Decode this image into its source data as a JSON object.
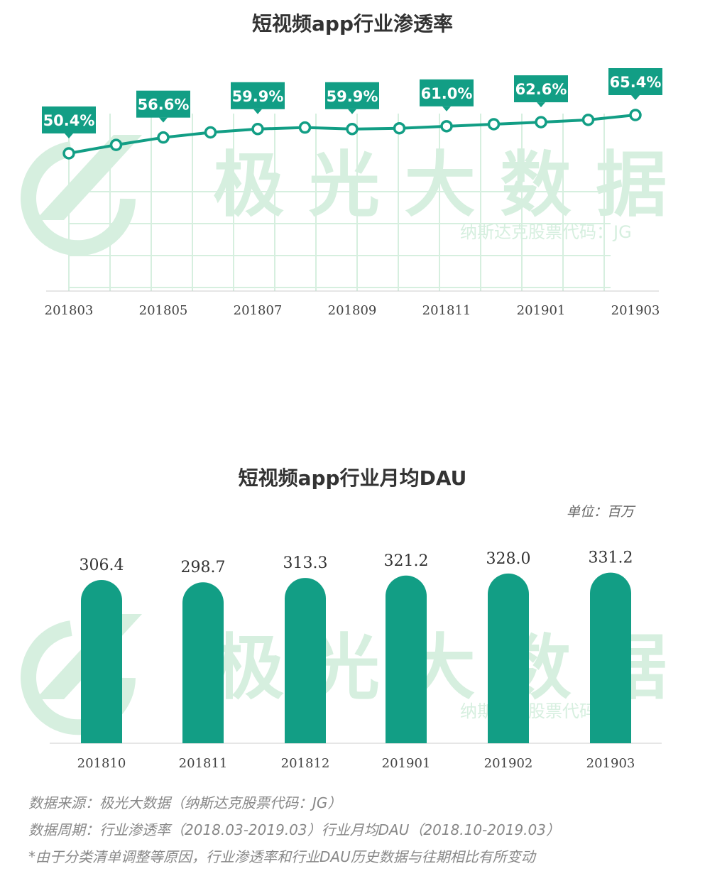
{
  "charts": {
    "penetration": {
      "title": "短视频app行业渗透率",
      "chart_data": {
        "type": "line",
        "x": [
          "201803",
          "201804",
          "201805",
          "201806",
          "201807",
          "201808",
          "201809",
          "201810",
          "201811",
          "201812",
          "201901",
          "201902",
          "201903"
        ],
        "tick_labels": [
          "201803",
          "201805",
          "201807",
          "201809",
          "201811",
          "201901",
          "201903"
        ],
        "values": [
          50.4,
          53.7,
          56.6,
          58.6,
          59.9,
          60.5,
          59.9,
          60.2,
          61.0,
          61.8,
          62.6,
          63.5,
          65.4
        ],
        "labels": [
          {
            "x": "201803",
            "text": "50.4%"
          },
          {
            "x": "201805",
            "text": "56.6%"
          },
          {
            "x": "201807",
            "text": "59.9%"
          },
          {
            "x": "201809",
            "text": "59.9%"
          },
          {
            "x": "201811",
            "text": "61.0%"
          },
          {
            "x": "201901",
            "text": "62.6%"
          },
          {
            "x": "201903",
            "text": "65.4%"
          }
        ],
        "unit": "%",
        "ylim": [
          0,
          70
        ]
      }
    },
    "dau": {
      "title": "短视频app行业月均DAU",
      "unit_label": "单位：百万",
      "chart_data": {
        "type": "bar",
        "categories": [
          "201810",
          "201811",
          "201812",
          "201901",
          "201902",
          "201903"
        ],
        "values": [
          306.4,
          298.7,
          313.3,
          321.2,
          328.0,
          331.2
        ],
        "value_labels": [
          "306.4",
          "298.7",
          "313.3",
          "321.2",
          "328.0",
          "331.2"
        ],
        "ylim": [
          0,
          340
        ]
      }
    }
  },
  "watermark": {
    "main": "极 光 大 数 据",
    "sub": "纳斯达克股票代码：JG"
  },
  "footnotes": [
    "数据来源：极光大数据（纳斯达克股票代码：JG）",
    "数据周期：行业渗透率（2018.03-2019.03）行业月均DAU（2018.10-2019.03）",
    "*由于分类清单调整等原因，行业渗透率和行业DAU历史数据与往期相比有所变动"
  ],
  "colors": {
    "primary": "#129E85",
    "watermark": "#D6EFDF",
    "axis": "#CCCCCC",
    "text": "#333333"
  }
}
